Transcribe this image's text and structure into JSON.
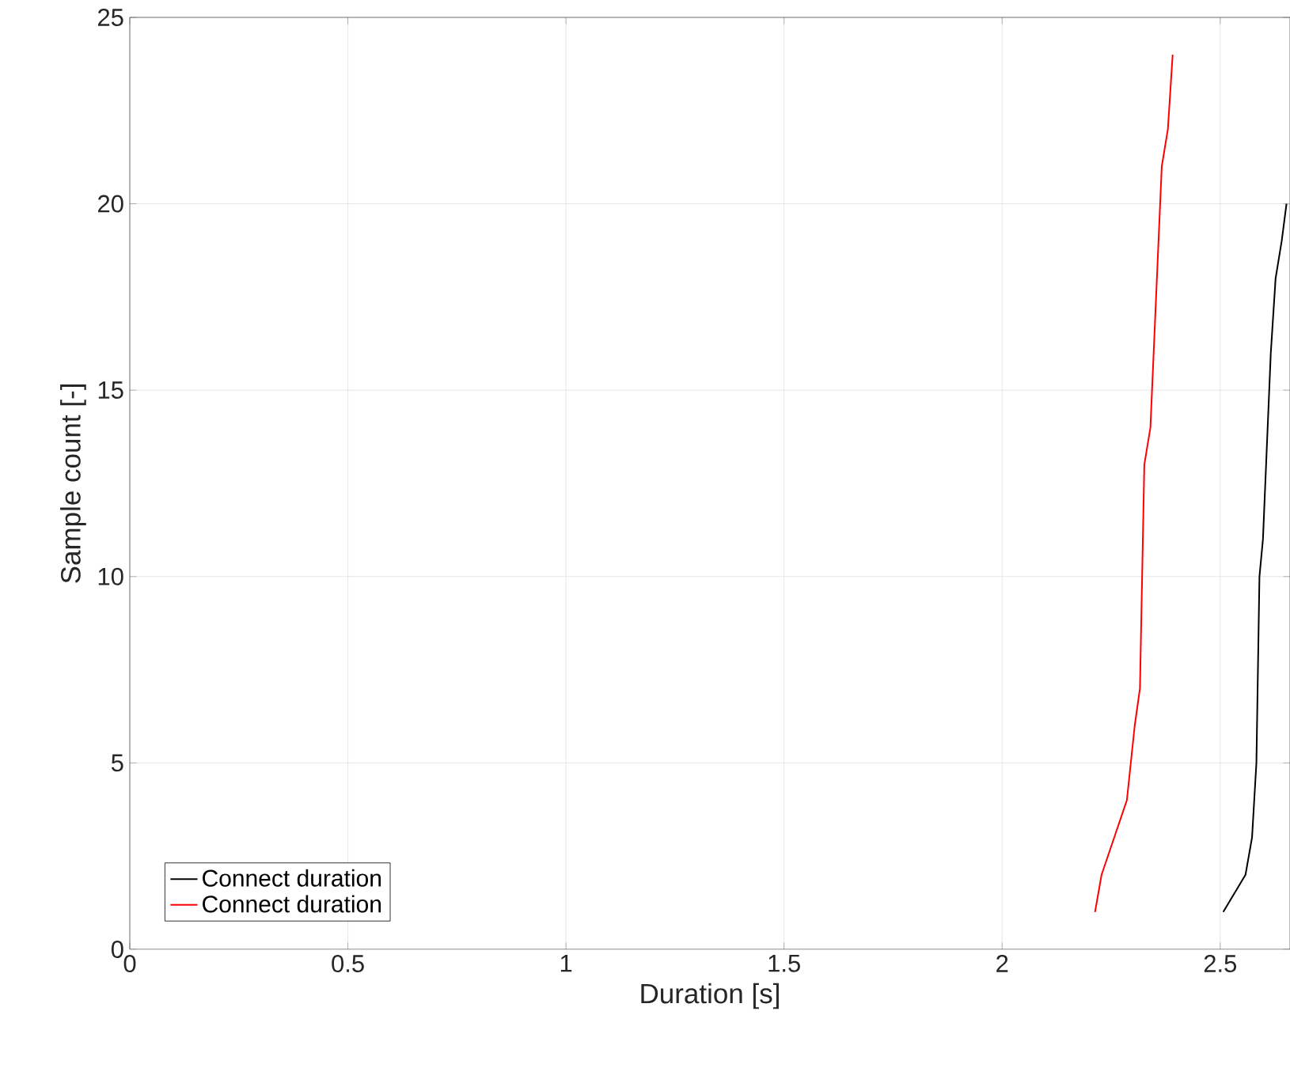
{
  "chart_data": {
    "type": "line",
    "xlabel": "Duration [s]",
    "ylabel": "Sample count [-]",
    "xlim": [
      0,
      2.66
    ],
    "ylim": [
      0,
      25
    ],
    "xticks": [
      0,
      0.5,
      1,
      1.5,
      2,
      2.5
    ],
    "yticks": [
      0,
      5,
      10,
      15,
      20,
      25
    ],
    "grid": true,
    "legend": "bottom left",
    "series": [
      {
        "name": "Connect duration",
        "color": "#000000",
        "x": [
          2.507,
          2.558,
          2.573,
          2.583,
          2.59,
          2.598,
          2.616,
          2.627,
          2.641,
          2.652
        ],
        "values": [
          1,
          2,
          3,
          5,
          10,
          11,
          16,
          18,
          19,
          20
        ]
      },
      {
        "name": "Connect duration",
        "color": "#ff0000",
        "x": [
          2.213,
          2.228,
          2.286,
          2.304,
          2.316,
          2.326,
          2.34,
          2.366,
          2.38,
          2.391
        ],
        "values": [
          1,
          2,
          4,
          6,
          7,
          13,
          14,
          21,
          22,
          24
        ]
      }
    ]
  }
}
